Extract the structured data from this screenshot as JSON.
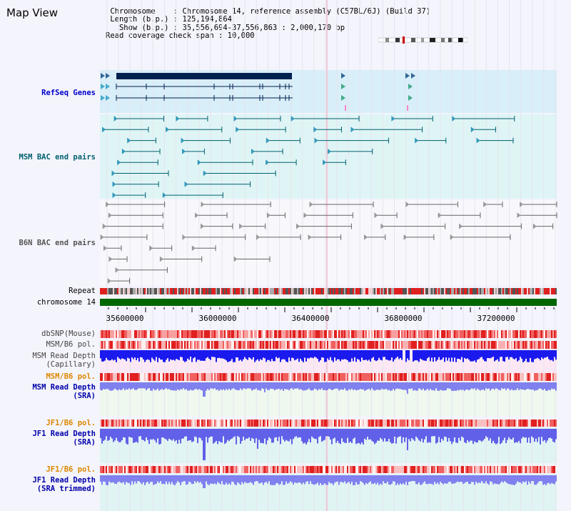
{
  "page": {
    "title": "Map View"
  },
  "info": {
    "lines": [
      " Chromosome    : Chromosome 14, reference assembly (C57BL/6J) (Build 37)",
      " Length (b.p.) : 125,194,864",
      "   Show (b.p.) : 35,556,694-37,556,863 : 2,000,170 bp",
      "Read coverage check span : 10,000"
    ]
  },
  "colors": {
    "refseq": "#0000cc",
    "bac_msm": "#006070",
    "bac_b6n": "#555555",
    "pol_label": "#dd8800",
    "depth_label": "#0000aa",
    "depth_blue": "#1a1aee",
    "depth_sra": "#8080ee",
    "chromosome": "#006600"
  },
  "tracks": {
    "refseq_label": "RefSeq Genes",
    "msm_bac_label": "MSM BAC end pairs",
    "b6n_bac_label": "B6N BAC end pairs",
    "repeat_label": "Repeat",
    "chromosome_label": "chromosome 14",
    "dbsnp_label": "dbSNP(Mouse)",
    "msm_b6_pol_label": "MSM/B6 pol.",
    "msm_depth_cap_label": "MSM Read Depth\n(Capillary)",
    "msm_b6_pol2_label": "MSM/B6 pol.",
    "msm_depth_sra_label": "MSM Read Depth\n(SRA)",
    "jf1_b6_pol_label": "JF1/B6 pol.",
    "jf1_depth_sra_label": "JF1 Read Depth\n(SRA)",
    "jf1_b6_pol2_label": "JF1/B6 pol.",
    "jf1_depth_trim_label": "JF1 Read Depth\n(SRA trimmed)"
  },
  "axis": {
    "ticks": [
      "35600000",
      "36000000",
      "36400000",
      "36800000",
      "37200000"
    ]
  }
}
